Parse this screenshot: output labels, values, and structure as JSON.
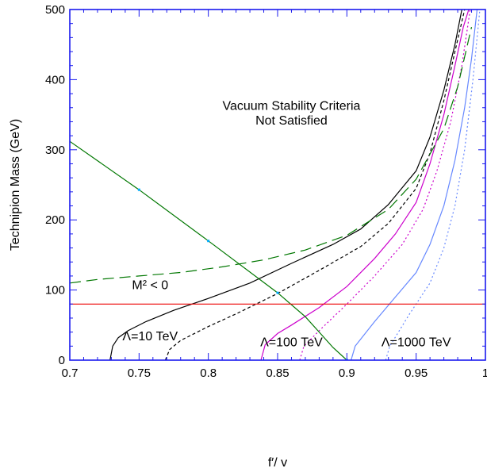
{
  "chart_data": {
    "type": "line",
    "xlabel": "f′/ v",
    "ylabel": "Technipion Mass (GeV)",
    "xlim": [
      0.7,
      1.0
    ],
    "ylim": [
      0,
      500
    ],
    "xticks": [
      0.7,
      0.75,
      0.8,
      0.85,
      0.9,
      0.95,
      1
    ],
    "xtick_labels": [
      "0.7",
      "0.75",
      "0.8",
      "0.85",
      "0.9",
      "0.95",
      "1"
    ],
    "yticks": [
      0,
      100,
      200,
      300,
      400,
      500
    ],
    "ytick_labels": [
      "0",
      "100",
      "200",
      "300",
      "400",
      "500"
    ],
    "grid": false,
    "annotations": [
      {
        "text": "Vacuum Stability Criteria",
        "x": 0.86,
        "y": 357
      },
      {
        "text": "Not Satisfied",
        "x": 0.86,
        "y": 336
      },
      {
        "text": "M² < 0",
        "x": 0.758,
        "y": 101
      },
      {
        "text": "Λ=10 TeV",
        "x": 0.758,
        "y": 28
      },
      {
        "text": "Λ=100 TeV",
        "x": 0.86,
        "y": 20
      },
      {
        "text": "Λ=1000 TeV",
        "x": 0.95,
        "y": 20
      }
    ],
    "series": [
      {
        "color": "#000000",
        "dash": "solid",
        "x": [
          0.729,
          0.731,
          0.735,
          0.742,
          0.755,
          0.775,
          0.8,
          0.83,
          0.86,
          0.89,
          0.91,
          0.93,
          0.95,
          0.96,
          0.97,
          0.978,
          0.983
        ],
        "y": [
          0,
          20,
          32,
          42,
          55,
          71,
          88,
          110,
          138,
          165,
          187,
          222,
          270,
          318,
          385,
          450,
          500
        ]
      },
      {
        "color": "#000000",
        "dash": "4,3",
        "x": [
          0.769,
          0.772,
          0.78,
          0.8,
          0.82,
          0.85,
          0.88,
          0.91,
          0.93,
          0.95,
          0.96,
          0.97,
          0.978,
          0.985
        ],
        "y": [
          0,
          15,
          28,
          48,
          66,
          95,
          128,
          162,
          195,
          245,
          295,
          370,
          440,
          500
        ]
      },
      {
        "color": "#cc00cc",
        "dash": "solid",
        "x": [
          0.838,
          0.841,
          0.85,
          0.86,
          0.88,
          0.9,
          0.92,
          0.935,
          0.95,
          0.96,
          0.97,
          0.978,
          0.984,
          0.988
        ],
        "y": [
          0,
          22,
          38,
          50,
          75,
          105,
          145,
          180,
          225,
          280,
          350,
          420,
          475,
          500
        ]
      },
      {
        "color": "#cc00cc",
        "dash": "2,3",
        "x": [
          0.866,
          0.869,
          0.88,
          0.9,
          0.92,
          0.94,
          0.955,
          0.965,
          0.975,
          0.983,
          0.989
        ],
        "y": [
          0,
          20,
          42,
          80,
          120,
          165,
          215,
          270,
          340,
          420,
          500
        ]
      },
      {
        "color": "#6688ff",
        "dash": "solid",
        "x": [
          0.903,
          0.906,
          0.92,
          0.935,
          0.95,
          0.96,
          0.97,
          0.978,
          0.985,
          0.99,
          0.994
        ],
        "y": [
          0,
          20,
          55,
          90,
          125,
          165,
          220,
          285,
          360,
          430,
          500
        ]
      },
      {
        "color": "#6688ff",
        "dash": "2,3",
        "x": [
          0.928,
          0.931,
          0.945,
          0.96,
          0.97,
          0.978,
          0.985,
          0.991,
          0.996
        ],
        "y": [
          0,
          20,
          65,
          110,
          160,
          220,
          300,
          400,
          500
        ]
      },
      {
        "color": "#007700",
        "dash": "14,7",
        "x": [
          0.7,
          0.72,
          0.75,
          0.78,
          0.81,
          0.84,
          0.87,
          0.9,
          0.93,
          0.95,
          0.97,
          0.98,
          0.99
        ],
        "y": [
          110,
          115,
          120,
          125,
          133,
          143,
          157,
          178,
          215,
          258,
          330,
          390,
          475
        ]
      },
      {
        "color": "#007700",
        "dash": "solid",
        "x": [
          0.7,
          0.75,
          0.8,
          0.85,
          0.87,
          0.88,
          0.89,
          0.9
        ],
        "y": [
          312,
          243,
          170,
          96,
          62,
          40,
          18,
          0
        ]
      },
      {
        "color": "#ee0000",
        "dash": "solid",
        "x": [
          0.7,
          1.0
        ],
        "y": [
          80,
          80
        ]
      }
    ],
    "markers": {
      "color": "#00aaff",
      "x": [
        0.75,
        0.8,
        0.85,
        0.9
      ],
      "y": [
        243,
        170,
        96,
        0
      ]
    }
  }
}
